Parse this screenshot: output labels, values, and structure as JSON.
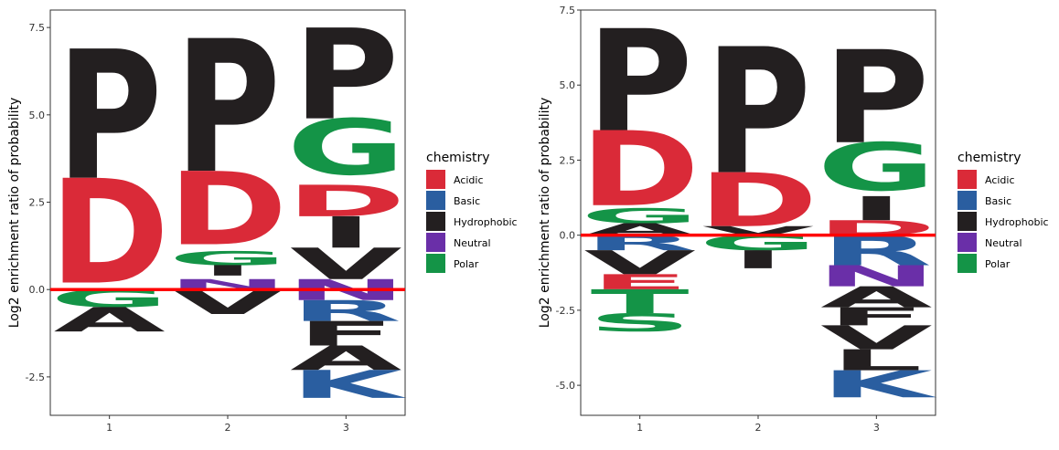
{
  "legend": {
    "title": "chemistry",
    "entries": [
      {
        "label": "Acidic",
        "color": "#DA2A38"
      },
      {
        "label": "Basic",
        "color": "#2A5EA0"
      },
      {
        "label": "Hydrophobic",
        "color": "#231F20"
      },
      {
        "label": "Neutral",
        "color": "#6A2FA8"
      },
      {
        "label": "Polar",
        "color": "#149447"
      }
    ]
  },
  "chart_data": [
    {
      "type": "sequence-logo",
      "ylabel": "Log2 enrichment ratio of probability",
      "categories": [
        "1",
        "2",
        "3"
      ],
      "yticks": [
        "-2.5",
        "0.0",
        "2.5",
        "5.0",
        "7.5"
      ],
      "ylim": [
        -3.6,
        8.0
      ],
      "baseline": 0.0,
      "baseline_color": "#FF0000",
      "positions": [
        {
          "x": "1",
          "letters": [
            {
              "letter": "P",
              "start": 3.2,
              "end": 6.9,
              "chemistry": "Hydrophobic"
            },
            {
              "letter": "D",
              "start": 0.2,
              "end": 3.2,
              "chemistry": "Acidic"
            },
            {
              "letter": "G",
              "start": -0.5,
              "end": 0.0,
              "chemistry": "Polar"
            },
            {
              "letter": "A",
              "start": -1.2,
              "end": -0.5,
              "chemistry": "Hydrophobic"
            }
          ]
        },
        {
          "x": "2",
          "letters": [
            {
              "letter": "P",
              "start": 3.4,
              "end": 7.2,
              "chemistry": "Hydrophobic"
            },
            {
              "letter": "D",
              "start": 1.3,
              "end": 3.4,
              "chemistry": "Acidic"
            },
            {
              "letter": "G",
              "start": 0.7,
              "end": 1.1,
              "chemistry": "Polar"
            },
            {
              "letter": "I",
              "start": 0.4,
              "end": 0.7,
              "chemistry": "Hydrophobic"
            },
            {
              "letter": "N",
              "start": 0.0,
              "end": 0.3,
              "chemistry": "Neutral"
            },
            {
              "letter": "V",
              "start": -0.7,
              "end": 0.0,
              "chemistry": "Hydrophobic"
            }
          ]
        },
        {
          "x": "3",
          "letters": [
            {
              "letter": "P",
              "start": 4.9,
              "end": 7.5,
              "chemistry": "Hydrophobic"
            },
            {
              "letter": "G",
              "start": 3.3,
              "end": 4.9,
              "chemistry": "Polar"
            },
            {
              "letter": "D",
              "start": 2.1,
              "end": 3.0,
              "chemistry": "Acidic"
            },
            {
              "letter": "I",
              "start": 1.2,
              "end": 2.1,
              "chemistry": "Hydrophobic"
            },
            {
              "letter": "V",
              "start": 0.3,
              "end": 1.2,
              "chemistry": "Hydrophobic"
            },
            {
              "letter": "N",
              "start": -0.3,
              "end": 0.3,
              "chemistry": "Neutral"
            },
            {
              "letter": "R",
              "start": -0.9,
              "end": -0.3,
              "chemistry": "Basic"
            },
            {
              "letter": "F",
              "start": -1.6,
              "end": -0.9,
              "chemistry": "Hydrophobic"
            },
            {
              "letter": "A",
              "start": -2.3,
              "end": -1.6,
              "chemistry": "Hydrophobic"
            },
            {
              "letter": "K",
              "start": -3.1,
              "end": -2.3,
              "chemistry": "Basic"
            }
          ]
        }
      ]
    },
    {
      "type": "sequence-logo",
      "ylabel": "Log2 enrichment ratio of probability",
      "categories": [
        "1",
        "2",
        "3"
      ],
      "yticks": [
        "-5.0",
        "-2.5",
        "0.0",
        "2.5",
        "5.0",
        "7.5"
      ],
      "ylim": [
        -6.0,
        7.5
      ],
      "baseline": 0.0,
      "baseline_color": "#FF0000",
      "positions": [
        {
          "x": "1",
          "letters": [
            {
              "letter": "P",
              "start": 3.5,
              "end": 6.9,
              "chemistry": "Hydrophobic"
            },
            {
              "letter": "D",
              "start": 1.0,
              "end": 3.5,
              "chemistry": "Acidic"
            },
            {
              "letter": "G",
              "start": 0.4,
              "end": 0.9,
              "chemistry": "Polar"
            },
            {
              "letter": "A",
              "start": 0.0,
              "end": 0.4,
              "chemistry": "Hydrophobic"
            },
            {
              "letter": "R",
              "start": -0.5,
              "end": 0.0,
              "chemistry": "Basic"
            },
            {
              "letter": "V",
              "start": -1.3,
              "end": -0.5,
              "chemistry": "Hydrophobic"
            },
            {
              "letter": "E",
              "start": -1.8,
              "end": -1.3,
              "chemistry": "Acidic"
            },
            {
              "letter": "T",
              "start": -2.6,
              "end": -1.8,
              "chemistry": "Polar"
            },
            {
              "letter": "S",
              "start": -3.2,
              "end": -2.6,
              "chemistry": "Polar"
            }
          ]
        },
        {
          "x": "2",
          "letters": [
            {
              "letter": "P",
              "start": 2.1,
              "end": 6.3,
              "chemistry": "Hydrophobic"
            },
            {
              "letter": "D",
              "start": 0.3,
              "end": 2.1,
              "chemistry": "Acidic"
            },
            {
              "letter": "V",
              "start": 0.0,
              "end": 0.3,
              "chemistry": "Hydrophobic"
            },
            {
              "letter": "G",
              "start": -0.5,
              "end": 0.0,
              "chemistry": "Polar"
            },
            {
              "letter": "I",
              "start": -1.1,
              "end": -0.5,
              "chemistry": "Hydrophobic"
            }
          ]
        },
        {
          "x": "3",
          "letters": [
            {
              "letter": "P",
              "start": 3.1,
              "end": 6.2,
              "chemistry": "Hydrophobic"
            },
            {
              "letter": "G",
              "start": 1.5,
              "end": 3.1,
              "chemistry": "Polar"
            },
            {
              "letter": "I",
              "start": 0.5,
              "end": 1.3,
              "chemistry": "Hydrophobic"
            },
            {
              "letter": "D",
              "start": 0.0,
              "end": 0.5,
              "chemistry": "Acidic"
            },
            {
              "letter": "R",
              "start": -1.0,
              "end": 0.0,
              "chemistry": "Basic"
            },
            {
              "letter": "N",
              "start": -1.7,
              "end": -1.0,
              "chemistry": "Neutral"
            },
            {
              "letter": "A",
              "start": -2.4,
              "end": -1.7,
              "chemistry": "Hydrophobic"
            },
            {
              "letter": "F",
              "start": -3.0,
              "end": -2.4,
              "chemistry": "Hydrophobic"
            },
            {
              "letter": "V",
              "start": -3.8,
              "end": -3.0,
              "chemistry": "Hydrophobic"
            },
            {
              "letter": "L",
              "start": -4.5,
              "end": -3.8,
              "chemistry": "Hydrophobic"
            },
            {
              "letter": "K",
              "start": -5.4,
              "end": -4.5,
              "chemistry": "Basic"
            }
          ]
        }
      ]
    }
  ]
}
